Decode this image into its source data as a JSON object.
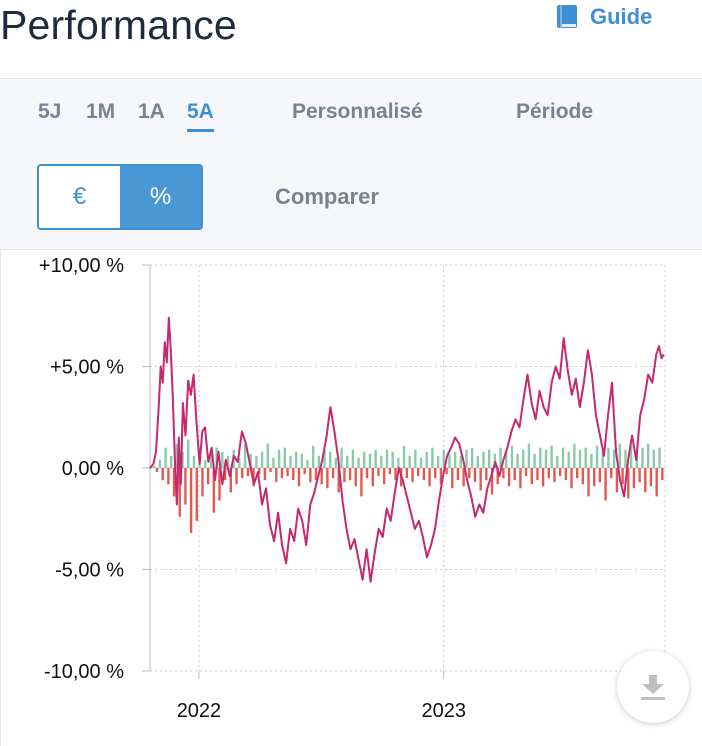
{
  "header": {
    "title": "Performance",
    "guide_label": "Guide",
    "guide_icon": "book-icon"
  },
  "tabs": [
    {
      "label": "5J",
      "active": false
    },
    {
      "label": "1M",
      "active": false
    },
    {
      "label": "1A",
      "active": false
    },
    {
      "label": "5A",
      "active": true
    },
    {
      "label": "Personnalisé",
      "active": false
    },
    {
      "label": "Période",
      "active": false
    }
  ],
  "toggle": {
    "euro_label": "€",
    "percent_label": "%",
    "selected": "%"
  },
  "compare_label": "Comparer",
  "download_icon": "download-icon",
  "colors": {
    "accent": "#3f8fd3",
    "line": "#c4296e",
    "bar_positive": "#8cc9aa",
    "bar_negative": "#e4574e"
  },
  "chart_data": {
    "type": "line",
    "ylim": [
      -10,
      10
    ],
    "yticks": [
      10,
      5,
      0,
      -5,
      -10
    ],
    "ytick_labels": [
      "+10,00 %",
      "+5,00 %",
      "0,00 %",
      "-5,00 %",
      "-10,00 %"
    ],
    "xlim": [
      "2021-10-20",
      "2023-11-27"
    ],
    "xticks": [
      "2022-01-01",
      "2023-01-01"
    ],
    "xtick_labels": [
      "2022",
      "2023"
    ],
    "grid": true,
    "series": [
      {
        "kind": "line",
        "points": [
          [
            "2021-10-20",
            0.0
          ],
          [
            "2021-10-25",
            0.2
          ],
          [
            "2021-10-29",
            0.8
          ],
          [
            "2021-11-02",
            3.0
          ],
          [
            "2021-11-05",
            5.0
          ],
          [
            "2021-11-08",
            4.2
          ],
          [
            "2021-11-11",
            6.2
          ],
          [
            "2021-11-14",
            5.2
          ],
          [
            "2021-11-17",
            7.4
          ],
          [
            "2021-11-20",
            5.8
          ],
          [
            "2021-11-23",
            3.5
          ],
          [
            "2021-11-26",
            0.5
          ],
          [
            "2021-11-29",
            -1.8
          ],
          [
            "2021-12-02",
            1.5
          ],
          [
            "2021-12-05",
            -0.8
          ],
          [
            "2021-12-08",
            3.2
          ],
          [
            "2021-12-12",
            1.6
          ],
          [
            "2021-12-16",
            4.3
          ],
          [
            "2021-12-20",
            3.6
          ],
          [
            "2021-12-24",
            4.6
          ],
          [
            "2021-12-28",
            2.4
          ],
          [
            "2022-01-02",
            0.2
          ],
          [
            "2022-01-06",
            1.8
          ],
          [
            "2022-01-10",
            2.0
          ],
          [
            "2022-01-15",
            0.3
          ],
          [
            "2022-01-20",
            1.0
          ],
          [
            "2022-01-25",
            -0.6
          ],
          [
            "2022-01-30",
            0.8
          ],
          [
            "2022-02-05",
            -0.8
          ],
          [
            "2022-02-10",
            0.4
          ],
          [
            "2022-02-16",
            -0.4
          ],
          [
            "2022-02-22",
            0.6
          ],
          [
            "2022-02-28",
            0.3
          ],
          [
            "2022-03-06",
            1.8
          ],
          [
            "2022-03-12",
            1.2
          ],
          [
            "2022-03-18",
            0.2
          ],
          [
            "2022-03-24",
            -0.8
          ],
          [
            "2022-03-30",
            -0.2
          ],
          [
            "2022-04-05",
            -1.8
          ],
          [
            "2022-04-11",
            -1.0
          ],
          [
            "2022-04-17",
            -2.8
          ],
          [
            "2022-04-23",
            -3.6
          ],
          [
            "2022-04-29",
            -2.2
          ],
          [
            "2022-05-05",
            -3.8
          ],
          [
            "2022-05-11",
            -4.7
          ],
          [
            "2022-05-17",
            -3.0
          ],
          [
            "2022-05-23",
            -3.6
          ],
          [
            "2022-05-29",
            -2.0
          ],
          [
            "2022-06-04",
            -2.6
          ],
          [
            "2022-06-10",
            -3.8
          ],
          [
            "2022-06-16",
            -1.8
          ],
          [
            "2022-06-22",
            -1.2
          ],
          [
            "2022-06-28",
            -0.4
          ],
          [
            "2022-07-04",
            0.4
          ],
          [
            "2022-07-10",
            1.5
          ],
          [
            "2022-07-16",
            3.0
          ],
          [
            "2022-07-22",
            1.8
          ],
          [
            "2022-07-28",
            0.4
          ],
          [
            "2022-08-03",
            -1.6
          ],
          [
            "2022-08-09",
            -3.0
          ],
          [
            "2022-08-15",
            -4.0
          ],
          [
            "2022-08-21",
            -3.5
          ],
          [
            "2022-08-27",
            -4.5
          ],
          [
            "2022-09-02",
            -5.5
          ],
          [
            "2022-09-08",
            -4.0
          ],
          [
            "2022-09-14",
            -5.6
          ],
          [
            "2022-09-20",
            -4.2
          ],
          [
            "2022-09-26",
            -3.0
          ],
          [
            "2022-10-02",
            -3.4
          ],
          [
            "2022-10-08",
            -2.0
          ],
          [
            "2022-10-14",
            -2.6
          ],
          [
            "2022-10-20",
            -1.2
          ],
          [
            "2022-10-26",
            0.0
          ],
          [
            "2022-11-01",
            -0.6
          ],
          [
            "2022-11-07",
            -1.4
          ],
          [
            "2022-11-13",
            -2.2
          ],
          [
            "2022-11-19",
            -3.0
          ],
          [
            "2022-11-25",
            -2.6
          ],
          [
            "2022-12-01",
            -3.4
          ],
          [
            "2022-12-07",
            -4.4
          ],
          [
            "2022-12-13",
            -3.8
          ],
          [
            "2022-12-19",
            -3.0
          ],
          [
            "2022-12-25",
            -1.6
          ],
          [
            "2022-12-31",
            -0.4
          ],
          [
            "2023-01-06",
            0.6
          ],
          [
            "2023-01-12",
            1.0
          ],
          [
            "2023-01-18",
            1.5
          ],
          [
            "2023-01-24",
            1.2
          ],
          [
            "2023-01-30",
            0.4
          ],
          [
            "2023-02-05",
            -0.6
          ],
          [
            "2023-02-11",
            -1.4
          ],
          [
            "2023-02-17",
            -2.4
          ],
          [
            "2023-02-23",
            -1.8
          ],
          [
            "2023-03-01",
            -2.2
          ],
          [
            "2023-03-07",
            -1.0
          ],
          [
            "2023-03-13",
            -0.4
          ],
          [
            "2023-03-19",
            0.3
          ],
          [
            "2023-03-25",
            -0.4
          ],
          [
            "2023-03-31",
            0.4
          ],
          [
            "2023-04-06",
            1.0
          ],
          [
            "2023-04-12",
            1.8
          ],
          [
            "2023-04-18",
            2.4
          ],
          [
            "2023-04-24",
            2.0
          ],
          [
            "2023-04-30",
            3.4
          ],
          [
            "2023-05-06",
            4.6
          ],
          [
            "2023-05-12",
            3.2
          ],
          [
            "2023-05-18",
            2.4
          ],
          [
            "2023-05-24",
            3.8
          ],
          [
            "2023-05-30",
            3.0
          ],
          [
            "2023-06-05",
            2.6
          ],
          [
            "2023-06-11",
            4.2
          ],
          [
            "2023-06-17",
            5.0
          ],
          [
            "2023-06-23",
            4.4
          ],
          [
            "2023-06-29",
            6.4
          ],
          [
            "2023-07-05",
            4.8
          ],
          [
            "2023-07-11",
            3.6
          ],
          [
            "2023-07-17",
            4.4
          ],
          [
            "2023-07-23",
            3.0
          ],
          [
            "2023-07-29",
            4.2
          ],
          [
            "2023-08-04",
            5.8
          ],
          [
            "2023-08-10",
            4.6
          ],
          [
            "2023-08-16",
            2.6
          ],
          [
            "2023-08-22",
            1.6
          ],
          [
            "2023-08-28",
            0.6
          ],
          [
            "2023-09-03",
            2.6
          ],
          [
            "2023-09-09",
            4.2
          ],
          [
            "2023-09-15",
            0.8
          ],
          [
            "2023-09-21",
            -0.6
          ],
          [
            "2023-09-27",
            -1.4
          ],
          [
            "2023-10-03",
            0.4
          ],
          [
            "2023-10-09",
            1.6
          ],
          [
            "2023-10-15",
            0.4
          ],
          [
            "2023-10-21",
            2.6
          ],
          [
            "2023-10-27",
            3.4
          ],
          [
            "2023-11-02",
            4.6
          ],
          [
            "2023-11-08",
            4.2
          ],
          [
            "2023-11-14",
            5.6
          ],
          [
            "2023-11-18",
            6.0
          ],
          [
            "2023-11-22",
            5.4
          ],
          [
            "2023-11-25",
            5.6
          ]
        ]
      },
      {
        "kind": "bars",
        "values": [
          [
            0.1,
            -0.2
          ],
          [
            0.4,
            -0.6
          ],
          [
            1.0,
            -0.8
          ],
          [
            0.6,
            -1.4
          ],
          [
            1.2,
            -2.4
          ],
          [
            0.8,
            -1.8
          ],
          [
            1.4,
            -3.2
          ],
          [
            0.6,
            -2.6
          ],
          [
            1.0,
            -1.4
          ],
          [
            0.4,
            -0.8
          ],
          [
            0.8,
            -2.2
          ],
          [
            1.0,
            -1.6
          ],
          [
            0.8,
            -0.6
          ],
          [
            0.6,
            -1.2
          ],
          [
            0.9,
            -0.8
          ],
          [
            0.5,
            -0.5
          ],
          [
            1.2,
            -0.4
          ],
          [
            0.7,
            -0.9
          ],
          [
            0.6,
            -0.3
          ],
          [
            0.8,
            -0.6
          ],
          [
            1.2,
            -0.2
          ],
          [
            0.5,
            -0.7
          ],
          [
            0.9,
            -0.5
          ],
          [
            1.0,
            -0.4
          ],
          [
            0.6,
            -0.6
          ],
          [
            0.8,
            -0.9
          ],
          [
            0.7,
            -0.3
          ],
          [
            0.4,
            -0.7
          ],
          [
            1.1,
            -0.6
          ],
          [
            0.6,
            -0.8
          ],
          [
            0.9,
            -1.0
          ],
          [
            0.8,
            -0.5
          ],
          [
            0.5,
            -1.2
          ],
          [
            1.0,
            -0.7
          ],
          [
            0.6,
            -0.6
          ],
          [
            0.9,
            -0.9
          ],
          [
            0.5,
            -1.4
          ],
          [
            0.8,
            -0.5
          ],
          [
            0.7,
            -0.9
          ],
          [
            0.9,
            -0.4
          ],
          [
            0.6,
            -0.8
          ],
          [
            0.9,
            -0.3
          ],
          [
            0.8,
            -0.6
          ],
          [
            0.5,
            -0.9
          ],
          [
            1.1,
            -0.5
          ],
          [
            0.6,
            -0.7
          ],
          [
            0.9,
            -0.4
          ],
          [
            0.5,
            -0.6
          ],
          [
            0.8,
            -0.9
          ],
          [
            1.0,
            -0.5
          ],
          [
            0.6,
            -0.8
          ],
          [
            0.9,
            -0.3
          ],
          [
            0.7,
            -1.0
          ],
          [
            0.8,
            -0.6
          ],
          [
            0.6,
            -0.9
          ],
          [
            0.9,
            -0.5
          ],
          [
            1.0,
            -0.7
          ],
          [
            0.6,
            -1.1
          ],
          [
            0.8,
            -0.6
          ],
          [
            0.9,
            -1.3
          ],
          [
            0.7,
            -0.8
          ],
          [
            1.0,
            -0.5
          ],
          [
            0.8,
            -0.9
          ],
          [
            1.1,
            -0.6
          ],
          [
            0.7,
            -1.0
          ],
          [
            0.9,
            -0.4
          ],
          [
            1.2,
            -0.8
          ],
          [
            0.7,
            -0.6
          ],
          [
            1.0,
            -0.9
          ],
          [
            0.9,
            -0.5
          ],
          [
            1.1,
            -0.7
          ],
          [
            0.6,
            -0.4
          ],
          [
            1.0,
            -0.6
          ],
          [
            0.8,
            -1.0
          ],
          [
            1.2,
            -0.5
          ],
          [
            0.9,
            -0.8
          ],
          [
            1.0,
            -1.4
          ],
          [
            0.7,
            -0.9
          ],
          [
            1.1,
            -0.7
          ],
          [
            0.8,
            -1.6
          ],
          [
            1.0,
            -0.5
          ],
          [
            0.9,
            -1.2
          ],
          [
            1.2,
            -0.8
          ],
          [
            0.9,
            -1.5
          ],
          [
            1.1,
            -1.0
          ],
          [
            0.8,
            -0.7
          ],
          [
            1.0,
            -1.2
          ],
          [
            1.2,
            -0.9
          ],
          [
            0.9,
            -1.4
          ],
          [
            1.0,
            -0.6
          ]
        ]
      }
    ]
  }
}
